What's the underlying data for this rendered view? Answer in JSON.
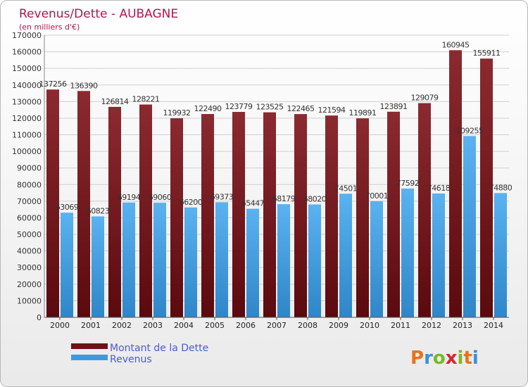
{
  "chart_data": {
    "type": "bar",
    "title": "Revenus/Dette - AUBAGNE",
    "subtitle": "(en milliers d'€)",
    "categories": [
      "2000",
      "2001",
      "2002",
      "2003",
      "2004",
      "2005",
      "2006",
      "2007",
      "2008",
      "2009",
      "2010",
      "2011",
      "2012",
      "2013",
      "2014"
    ],
    "series": [
      {
        "name": "Montant de la Dette",
        "color": "#7a1a22",
        "values": [
          137256,
          136390,
          126814,
          128221,
          119932,
          122490,
          123779,
          123525,
          122465,
          121594,
          119891,
          123891,
          129079,
          160945,
          155911
        ]
      },
      {
        "name": "Revenus",
        "color": "#4aa3e8",
        "values": [
          63069,
          60823,
          69194,
          69060,
          66200,
          69373,
          65447,
          68179,
          68020,
          74501,
          70001,
          77592,
          74618,
          109255,
          74880
        ]
      }
    ],
    "yticks": [
      0,
      10000,
      20000,
      30000,
      40000,
      50000,
      60000,
      70000,
      80000,
      90000,
      100000,
      110000,
      120000,
      130000,
      140000,
      150000,
      160000,
      170000
    ],
    "ylim": [
      0,
      170000
    ],
    "grid": true,
    "legend_position": "bottom-left"
  },
  "logo": {
    "letters": [
      "P",
      "r",
      "o",
      "x",
      "i",
      "t",
      "i"
    ],
    "colors": [
      "#e8731a",
      "#3b8fd8",
      "#7ab828",
      "#d8242c",
      "#7ab828",
      "#e8731a",
      "#3b8fd8"
    ]
  }
}
